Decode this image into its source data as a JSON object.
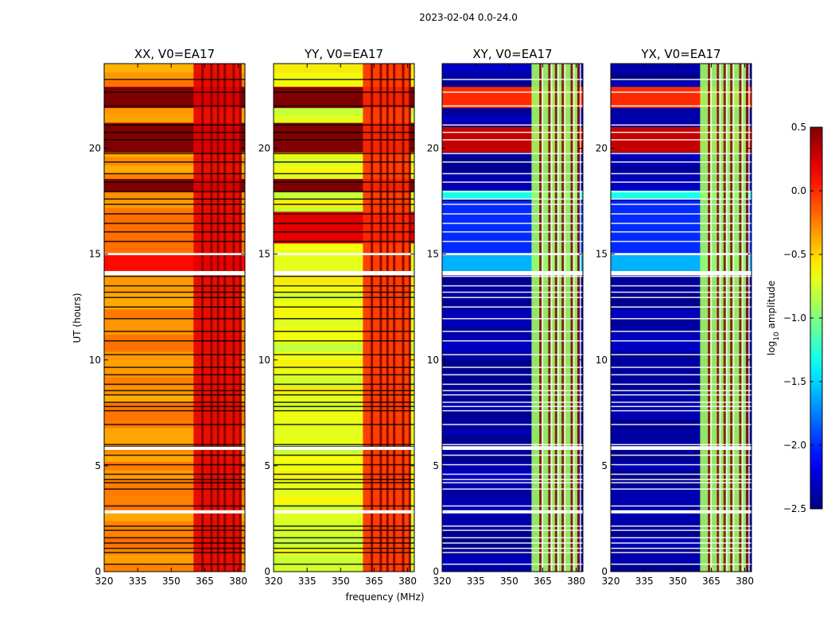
{
  "chart_data": {
    "type": "heatmap",
    "suptitle": "2023-02-04 0.0-24.0",
    "xlabel": "frequency (MHz)",
    "ylabel": "UT (hours)",
    "xlim": [
      320,
      383
    ],
    "ylim": [
      0,
      24
    ],
    "xticks": [
      320,
      335,
      350,
      365,
      380
    ],
    "yticks": [
      0,
      5,
      10,
      15,
      20
    ],
    "xtick_labels": [
      "320",
      "335",
      "350",
      "365",
      "380"
    ],
    "ytick_labels": [
      "0",
      "5",
      "10",
      "15",
      "20"
    ],
    "colorbar": {
      "label_main": "log",
      "label_sub": "10",
      "label_rest": " amplitude",
      "range": [
        -2.5,
        0.5
      ],
      "ticks": [
        0.5,
        0.0,
        -0.5,
        -1.0,
        -1.5,
        -2.0,
        -2.5
      ],
      "tick_labels": [
        "0.5",
        "0.0",
        "−0.5",
        "−1.0",
        "−1.5",
        "−2.0",
        "−2.5"
      ],
      "colormap": "jet"
    },
    "rfi_band_mhz": [
      360,
      381
    ],
    "rfi_lines_mhz": [
      364,
      368,
      371,
      374,
      378,
      381
    ],
    "flagged_rows_ut": [
      0.35,
      0.9,
      1.1,
      1.35,
      1.6,
      1.95,
      2.15,
      2.85,
      3.1,
      3.9,
      4.2,
      4.35,
      4.6,
      5.05,
      5.5,
      5.9,
      6.0,
      6.95,
      7.6,
      7.8,
      8.0,
      8.35,
      8.55,
      8.85,
      9.3,
      9.65,
      10.25,
      10.9,
      11.35,
      11.95,
      12.5,
      12.95,
      13.2,
      13.5,
      13.95,
      14.15,
      15.6,
      16.05,
      16.45,
      16.9,
      17.35,
      17.6,
      17.95,
      18.4,
      18.8,
      19.35,
      19.75,
      20.4,
      20.75,
      21.1,
      22.0,
      22.65,
      23.25
    ],
    "white_gaps_ut": [
      [
        2.75,
        2.9
      ],
      [
        5.75,
        5.9
      ],
      [
        14.0,
        14.2
      ],
      [
        14.95,
        15.05
      ]
    ],
    "series": [
      {
        "name": "XX, V0=EA17",
        "baseline_log_amp": -0.3,
        "rfi_log_amp": 0.2,
        "flagged_segments": [
          {
            "ut": [
              14.2,
              15.0
            ],
            "log_amp": 0.1
          },
          {
            "ut": [
              15.0,
              17.0
            ],
            "log_amp": -0.2
          },
          {
            "ut": [
              17.95,
              18.55
            ],
            "log_amp": 0.5
          },
          {
            "ut": [
              19.8,
              21.2
            ],
            "log_amp": 0.5
          },
          {
            "ut": [
              21.9,
              22.9
            ],
            "log_amp": 0.5
          }
        ]
      },
      {
        "name": "YY, V0=EA17",
        "baseline_log_amp": -0.7,
        "rfi_log_amp": 0.0,
        "flagged_segments": [
          {
            "ut": [
              14.2,
              15.0
            ],
            "log_amp": -0.7
          },
          {
            "ut": [
              15.5,
              17.0
            ],
            "log_amp": 0.2
          },
          {
            "ut": [
              17.95,
              18.55
            ],
            "log_amp": 0.5
          },
          {
            "ut": [
              19.8,
              21.2
            ],
            "log_amp": 0.5
          },
          {
            "ut": [
              21.9,
              22.9
            ],
            "log_amp": 0.5
          }
        ]
      },
      {
        "name": "XY, V0=EA17",
        "baseline_log_amp": -2.4,
        "rfi_log_amp": -0.9,
        "flagged_segments": [
          {
            "ut": [
              14.2,
              15.0
            ],
            "log_amp": -1.6
          },
          {
            "ut": [
              15.0,
              17.5
            ],
            "log_amp": -2.0
          },
          {
            "ut": [
              17.6,
              18.0
            ],
            "log_amp": -1.3
          },
          {
            "ut": [
              19.8,
              21.0
            ],
            "log_amp": 0.3
          },
          {
            "ut": [
              21.9,
              22.9
            ],
            "log_amp": 0.0
          }
        ]
      },
      {
        "name": "YX, V0=EA17",
        "baseline_log_amp": -2.4,
        "rfi_log_amp": -0.9,
        "flagged_segments": [
          {
            "ut": [
              14.2,
              15.0
            ],
            "log_amp": -1.6
          },
          {
            "ut": [
              15.0,
              17.5
            ],
            "log_amp": -2.0
          },
          {
            "ut": [
              17.6,
              18.0
            ],
            "log_amp": -1.3
          },
          {
            "ut": [
              19.8,
              21.0
            ],
            "log_amp": 0.3
          },
          {
            "ut": [
              21.9,
              22.9
            ],
            "log_amp": 0.0
          }
        ]
      }
    ]
  }
}
